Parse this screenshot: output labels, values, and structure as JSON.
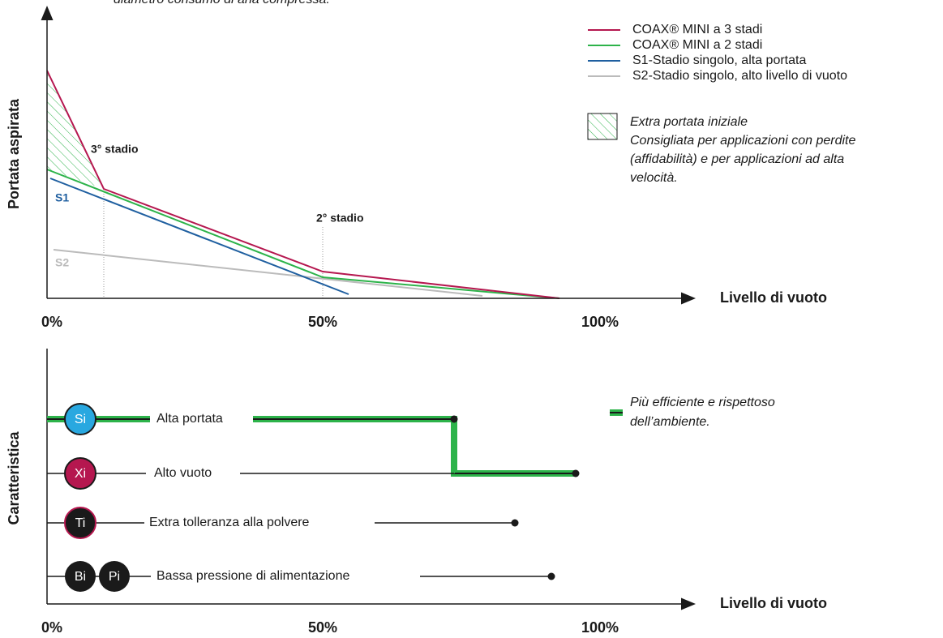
{
  "top_text": "diametro consumo di aria compressa.",
  "flow_chart": {
    "y_label": "Portata aspirata",
    "x_label": "Livello di vuoto",
    "ticks": [
      "0%",
      "50%",
      "100%"
    ],
    "stage_labels": [
      "3° stadio",
      "2° stadio"
    ],
    "line_labels": [
      "S1",
      "S2"
    ],
    "legend": [
      "COAX® MINI a 3 stadi",
      "COAX® MINI a 2 stadi",
      "S1-Stadio singolo, alta portata",
      "S2-Stadio singolo, alto livello di vuoto"
    ],
    "hatch_legend": [
      "Extra portata iniziale",
      "Consigliata per applicazioni con perdite",
      "(affidabilità) e per applicazioni ad alta",
      "velocità."
    ]
  },
  "feature_chart": {
    "y_label": "Caratteristica",
    "x_label": "Livello di vuoto",
    "ticks": [
      "0%",
      "50%",
      "100%"
    ],
    "rows": [
      {
        "badges": [
          "Si"
        ],
        "label": "Alta portata"
      },
      {
        "badges": [
          "Xi"
        ],
        "label": "Alto vuoto"
      },
      {
        "badges": [
          "Ti"
        ],
        "label": "Extra tolleranza alla polvere"
      },
      {
        "badges": [
          "Bi",
          "Pi"
        ],
        "label": "Bassa pressione di alimentazione"
      }
    ],
    "legend": [
      "Più efficiente e rispettoso",
      "dell’ambiente."
    ]
  }
}
